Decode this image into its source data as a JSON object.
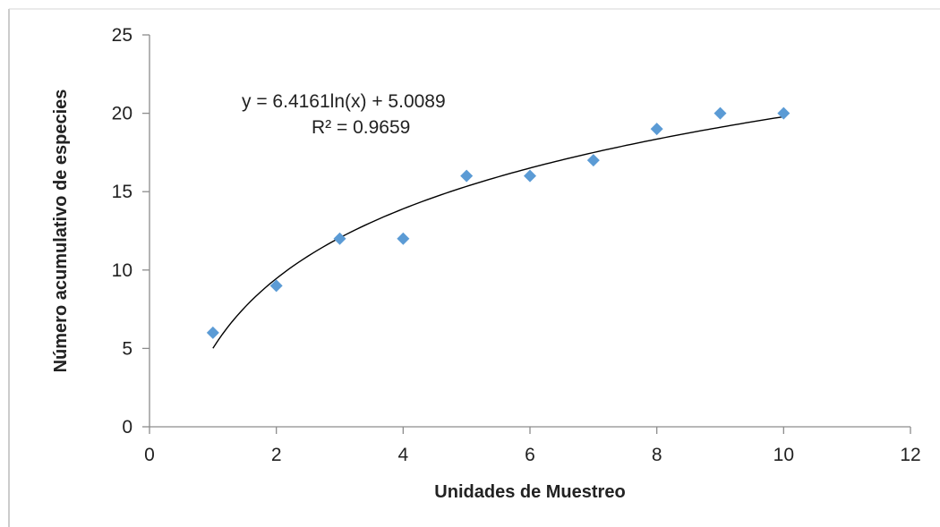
{
  "chart_data": {
    "type": "scatter",
    "title": "",
    "xlabel": "Unidades de Muestreo",
    "ylabel": "Número acumulativo de especies",
    "xlim": [
      0,
      12
    ],
    "ylim": [
      0,
      25
    ],
    "xticks": [
      0,
      2,
      4,
      6,
      8,
      10,
      12
    ],
    "yticks": [
      0,
      5,
      10,
      15,
      20,
      25
    ],
    "grid": false,
    "legend": "none",
    "series": [
      {
        "x": [
          1,
          2,
          3,
          4,
          5,
          6,
          7,
          8,
          9,
          10
        ],
        "y": [
          6,
          9,
          12,
          12,
          16,
          16,
          17,
          19,
          20,
          20
        ],
        "marker": "diamond",
        "color": "#5B9BD5"
      }
    ],
    "trendline": {
      "type": "logarithmic",
      "a": 6.4161,
      "b": 5.0089,
      "x_range": [
        1,
        10
      ],
      "color": "#000000"
    },
    "annotations": {
      "equation": "y = 6.4161ln(x) + 5.0089",
      "r_squared": "R² = 0.9659"
    }
  }
}
